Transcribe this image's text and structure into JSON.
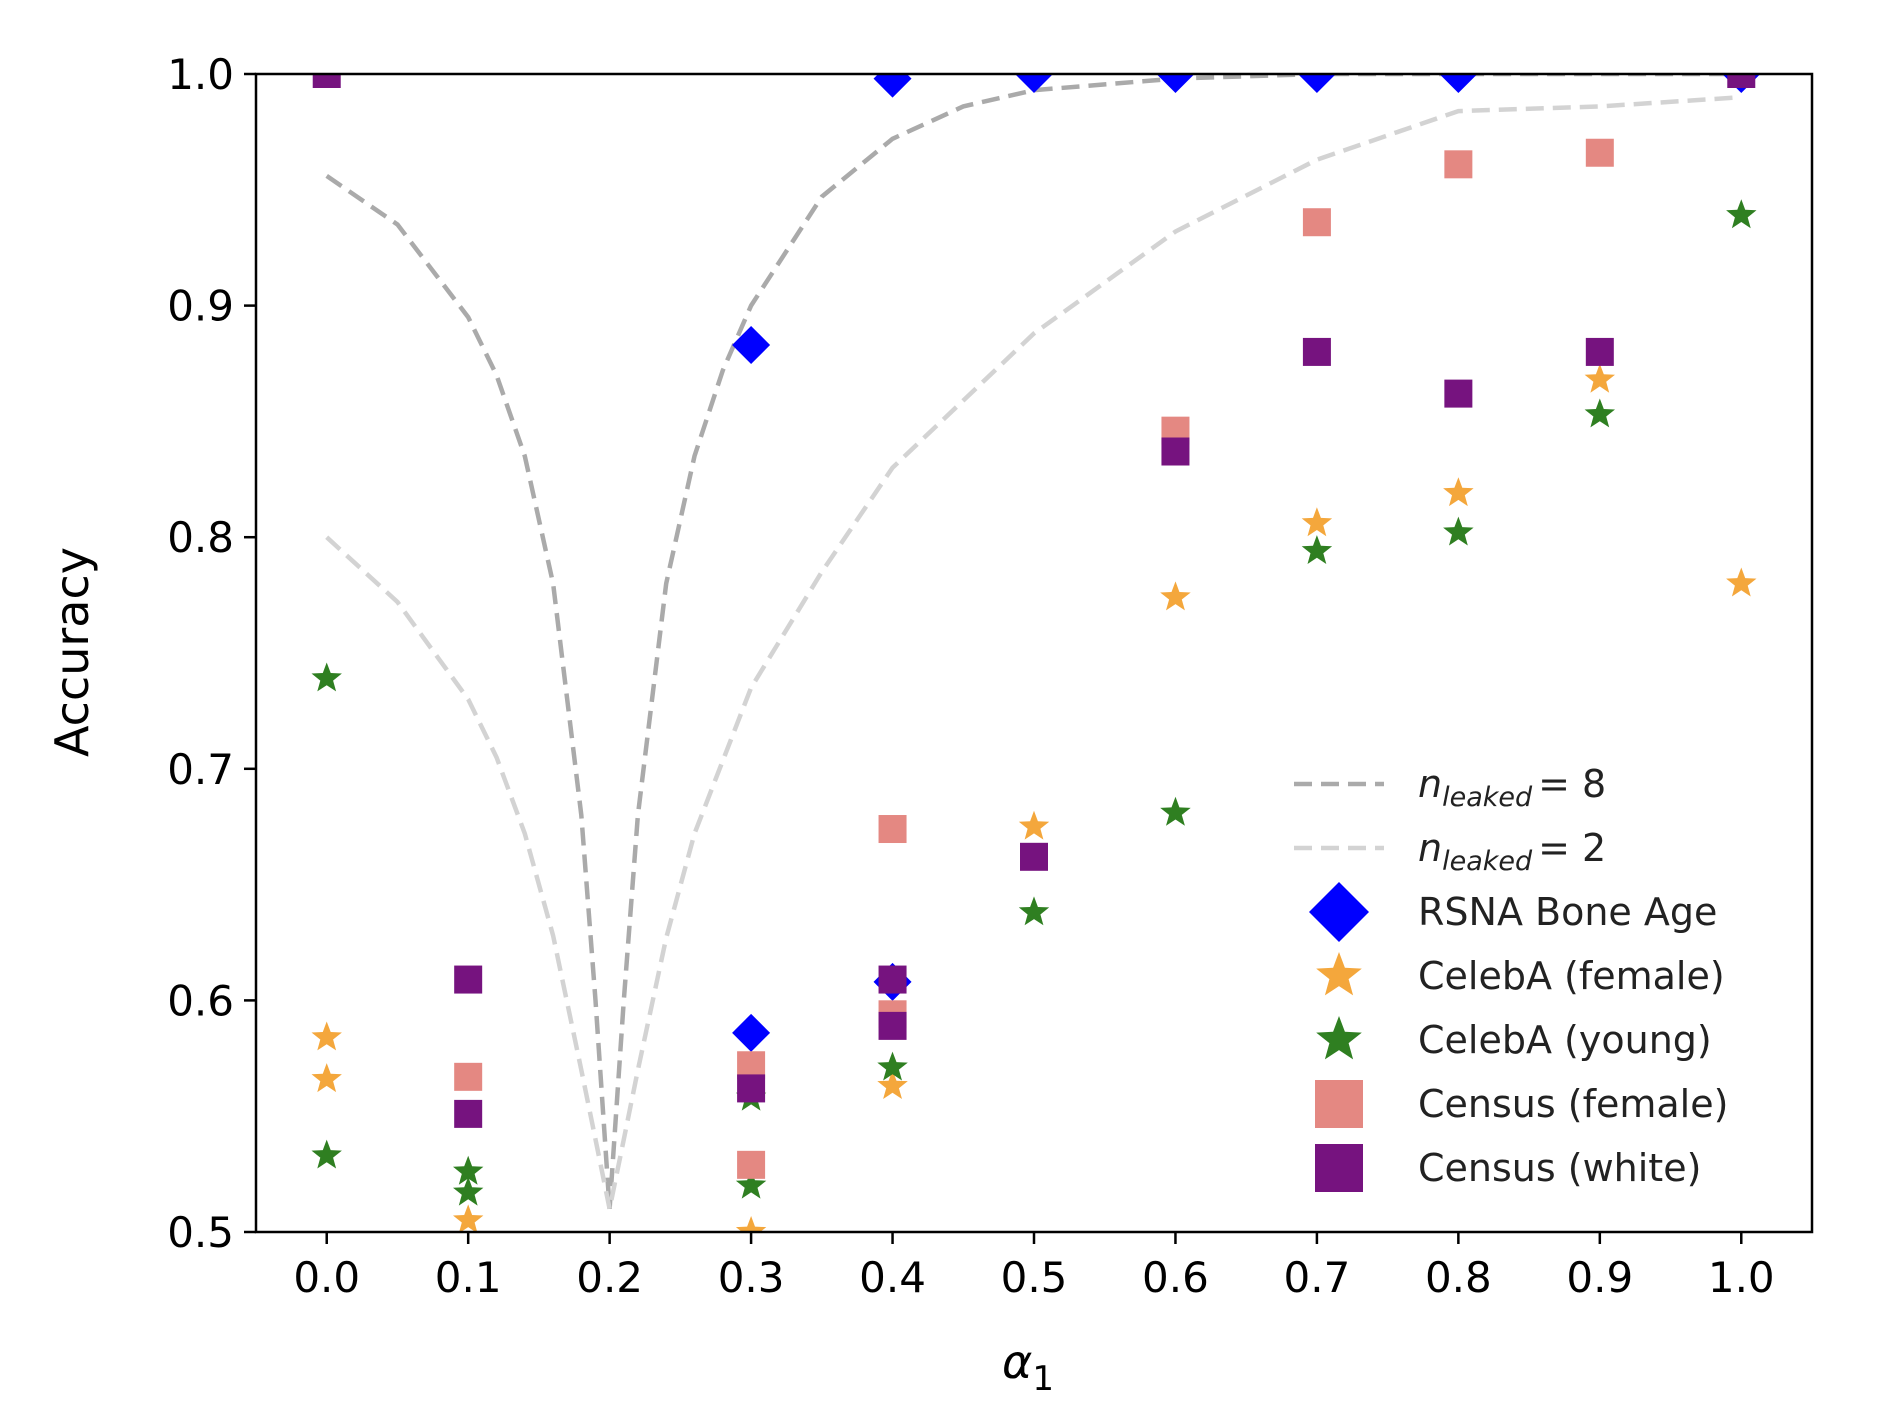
{
  "chart_data": {
    "type": "scatter",
    "xlabel": "α",
    "xlabel_sub": "1",
    "ylabel": "Accuracy",
    "xlim": [
      -0.05,
      1.05
    ],
    "ylim": [
      0.5,
      1.0
    ],
    "x_ticks": [
      0.0,
      0.1,
      0.2,
      0.3,
      0.4,
      0.5,
      0.6,
      0.7,
      0.8,
      0.9,
      1.0
    ],
    "x_tick_labels": [
      "0.0",
      "0.1",
      "0.2",
      "0.3",
      "0.4",
      "0.5",
      "0.6",
      "0.7",
      "0.8",
      "0.9",
      "1.0"
    ],
    "y_ticks": [
      0.5,
      0.6,
      0.7,
      0.8,
      0.9,
      1.0
    ],
    "y_tick_labels": [
      "0.5",
      "0.6",
      "0.7",
      "0.8",
      "0.9",
      "1.0"
    ],
    "grid": false,
    "legend_position": "lower-right",
    "reference_curves": [
      {
        "name_base": "n",
        "name_sub": "leaked",
        "name_suffix": "= 8",
        "color": "#aaaaaa",
        "style": "dashed",
        "points": [
          [
            0.0,
            0.956
          ],
          [
            0.05,
            0.935
          ],
          [
            0.1,
            0.895
          ],
          [
            0.12,
            0.87
          ],
          [
            0.14,
            0.835
          ],
          [
            0.16,
            0.78
          ],
          [
            0.18,
            0.68
          ],
          [
            0.19,
            0.6
          ],
          [
            0.2,
            0.51
          ],
          [
            0.21,
            0.6
          ],
          [
            0.22,
            0.68
          ],
          [
            0.24,
            0.78
          ],
          [
            0.26,
            0.835
          ],
          [
            0.28,
            0.872
          ],
          [
            0.3,
            0.9
          ],
          [
            0.35,
            0.947
          ],
          [
            0.4,
            0.972
          ],
          [
            0.45,
            0.986
          ],
          [
            0.5,
            0.993
          ],
          [
            0.6,
            0.998
          ],
          [
            0.7,
            1.0
          ],
          [
            1.0,
            1.0
          ]
        ]
      },
      {
        "name_base": "n",
        "name_sub": "leaked",
        "name_suffix": "= 2",
        "color": "#d3d3d3",
        "style": "dashed",
        "points": [
          [
            0.0,
            0.8
          ],
          [
            0.05,
            0.772
          ],
          [
            0.1,
            0.73
          ],
          [
            0.12,
            0.705
          ],
          [
            0.14,
            0.672
          ],
          [
            0.16,
            0.628
          ],
          [
            0.18,
            0.57
          ],
          [
            0.19,
            0.54
          ],
          [
            0.2,
            0.51
          ],
          [
            0.21,
            0.54
          ],
          [
            0.22,
            0.57
          ],
          [
            0.24,
            0.627
          ],
          [
            0.26,
            0.672
          ],
          [
            0.3,
            0.735
          ],
          [
            0.35,
            0.785
          ],
          [
            0.4,
            0.83
          ],
          [
            0.5,
            0.888
          ],
          [
            0.6,
            0.932
          ],
          [
            0.7,
            0.963
          ],
          [
            0.8,
            0.984
          ],
          [
            0.9,
            0.986
          ],
          [
            1.0,
            0.99
          ]
        ]
      }
    ],
    "series": [
      {
        "name": "RSNA Bone Age",
        "marker": "diamond",
        "color": "#0000ff",
        "points": [
          [
            0.3,
            0.883
          ],
          [
            0.3,
            0.586
          ],
          [
            0.4,
            0.998
          ],
          [
            0.4,
            0.608
          ],
          [
            0.5,
            1.0
          ],
          [
            0.6,
            1.0
          ],
          [
            0.7,
            1.0
          ],
          [
            0.8,
            1.0
          ],
          [
            1.0,
            1.0
          ]
        ]
      },
      {
        "name": "CelebA (female)",
        "marker": "star",
        "color": "#f4a73c",
        "points": [
          [
            0.0,
            0.584
          ],
          [
            0.0,
            0.566
          ],
          [
            0.1,
            0.505
          ],
          [
            0.3,
            0.5
          ],
          [
            0.4,
            0.563
          ],
          [
            0.5,
            0.675
          ],
          [
            0.6,
            0.774
          ],
          [
            0.7,
            0.806
          ],
          [
            0.8,
            0.819
          ],
          [
            0.9,
            0.868
          ],
          [
            1.0,
            0.78
          ]
        ]
      },
      {
        "name": "CelebA (young)",
        "marker": "star",
        "color": "#2f7f21",
        "points": [
          [
            0.0,
            0.739
          ],
          [
            0.0,
            0.533
          ],
          [
            0.1,
            0.526
          ],
          [
            0.1,
            0.517
          ],
          [
            0.3,
            0.558
          ],
          [
            0.3,
            0.52
          ],
          [
            0.4,
            0.571
          ],
          [
            0.5,
            0.638
          ],
          [
            0.6,
            0.681
          ],
          [
            0.7,
            0.794
          ],
          [
            0.8,
            0.802
          ],
          [
            0.9,
            0.853
          ],
          [
            1.0,
            0.939
          ]
        ]
      },
      {
        "name": "Census (female)",
        "marker": "square",
        "color": "#e48882",
        "points": [
          [
            0.1,
            0.567
          ],
          [
            0.3,
            0.572
          ],
          [
            0.3,
            0.529
          ],
          [
            0.4,
            0.674
          ],
          [
            0.4,
            0.594
          ],
          [
            0.6,
            0.846
          ],
          [
            0.7,
            0.936
          ],
          [
            0.8,
            0.961
          ],
          [
            0.9,
            0.966
          ]
        ]
      },
      {
        "name": "Census (white)",
        "marker": "square",
        "color": "#76137f",
        "points": [
          [
            0.0,
            1.0
          ],
          [
            0.1,
            0.609
          ],
          [
            0.1,
            0.551
          ],
          [
            0.3,
            0.562
          ],
          [
            0.4,
            0.609
          ],
          [
            0.4,
            0.589
          ],
          [
            0.5,
            0.662
          ],
          [
            0.6,
            0.837
          ],
          [
            0.7,
            0.88
          ],
          [
            0.8,
            0.862
          ],
          [
            0.9,
            0.88
          ],
          [
            1.0,
            1.0
          ]
        ]
      }
    ]
  }
}
